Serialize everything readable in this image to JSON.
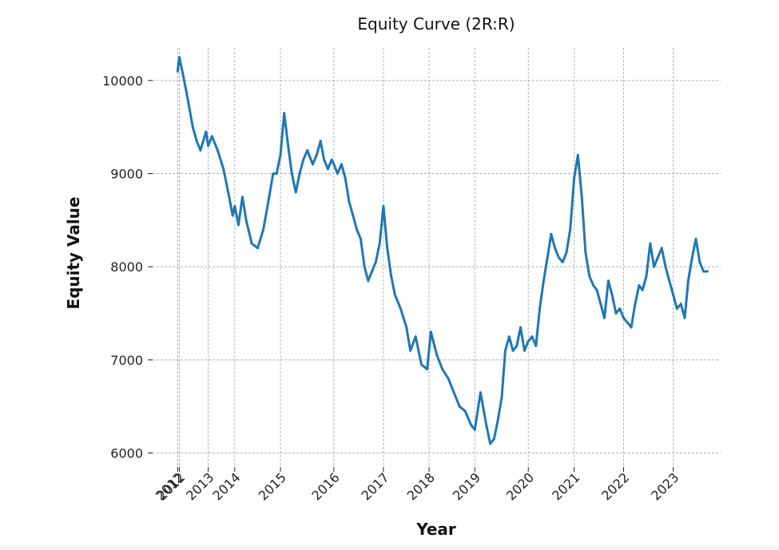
{
  "chart_data": {
    "type": "line",
    "title": "Equity Curve (2R:R)",
    "xlabel": "Year",
    "ylabel": "Equity Value",
    "grid": true,
    "ylim": [
      5850,
      10350
    ],
    "y_ticks": [
      6000,
      7000,
      8000,
      9000,
      10000
    ],
    "x_ticks": [
      {
        "label": "2012",
        "value": "2012-01-01"
      },
      {
        "label": "2012",
        "value": "2012-01-15"
      },
      {
        "label": "2013",
        "value": "2012-09-01"
      },
      {
        "label": "2014",
        "value": "2013-04-01"
      },
      {
        "label": "2015",
        "value": "2014-04-01"
      },
      {
        "label": "2016",
        "value": "2015-06-01"
      },
      {
        "label": "2017",
        "value": "2016-07-01"
      },
      {
        "label": "2018",
        "value": "2017-07-01"
      },
      {
        "label": "2019",
        "value": "2018-07-01"
      },
      {
        "label": "2020",
        "value": "2019-09-01"
      },
      {
        "label": "2021",
        "value": "2020-09-01"
      },
      {
        "label": "2022",
        "value": "2021-10-01"
      },
      {
        "label": "2023",
        "value": "2022-11-01"
      }
    ],
    "series": [
      {
        "color": "#1f77b4",
        "x": [
          "2012-01-01",
          "2012-01-15",
          "2012-02-15",
          "2012-03-15",
          "2012-05-01",
          "2012-06-01",
          "2012-07-01",
          "2012-08-15",
          "2012-09-01",
          "2012-10-01",
          "2012-11-15",
          "2013-01-01",
          "2013-02-15",
          "2013-03-15",
          "2013-04-01",
          "2013-05-01",
          "2013-06-01",
          "2013-07-01",
          "2013-08-15",
          "2013-10-01",
          "2013-11-15",
          "2014-01-01",
          "2014-02-01",
          "2014-03-01",
          "2014-04-01",
          "2014-05-01",
          "2014-06-01",
          "2014-07-01",
          "2014-08-01",
          "2014-09-01",
          "2014-10-01",
          "2014-11-01",
          "2014-12-15",
          "2015-01-15",
          "2015-02-15",
          "2015-03-15",
          "2015-04-15",
          "2015-05-15",
          "2015-06-01",
          "2015-07-01",
          "2015-08-01",
          "2015-09-01",
          "2015-10-01",
          "2015-11-01",
          "2015-12-01",
          "2016-01-01",
          "2016-02-01",
          "2016-03-01",
          "2016-04-01",
          "2016-05-01",
          "2016-06-01",
          "2016-07-01",
          "2016-08-01",
          "2016-09-01",
          "2016-10-01",
          "2016-11-15",
          "2017-01-01",
          "2017-02-01",
          "2017-03-15",
          "2017-05-01",
          "2017-06-15",
          "2017-07-15",
          "2017-09-01",
          "2017-10-15",
          "2017-12-01",
          "2018-01-15",
          "2018-03-01",
          "2018-04-15",
          "2018-06-01",
          "2018-07-01",
          "2018-08-15",
          "2018-10-01",
          "2018-11-01",
          "2018-12-01",
          "2019-01-01",
          "2019-02-01",
          "2019-03-01",
          "2019-04-01",
          "2019-05-01",
          "2019-06-01",
          "2019-07-01",
          "2019-08-01",
          "2019-09-01",
          "2019-10-01",
          "2019-11-01",
          "2019-12-01",
          "2020-01-01",
          "2020-02-01",
          "2020-03-01",
          "2020-04-01",
          "2020-05-01",
          "2020-06-01",
          "2020-07-01",
          "2020-08-01",
          "2020-09-01",
          "2020-10-01",
          "2020-11-01",
          "2020-12-01",
          "2021-01-01",
          "2021-02-01",
          "2021-03-01",
          "2021-04-01",
          "2021-05-01",
          "2021-06-01",
          "2021-07-01",
          "2021-08-01",
          "2021-09-01",
          "2021-10-01",
          "2021-11-01",
          "2021-12-01",
          "2022-01-01",
          "2022-02-01",
          "2022-03-01",
          "2022-04-01",
          "2022-05-01",
          "2022-06-01",
          "2022-07-01",
          "2022-08-01",
          "2022-09-01",
          "2022-10-01",
          "2022-11-01",
          "2022-12-01",
          "2023-01-01",
          "2023-02-01",
          "2023-03-01",
          "2023-04-01",
          "2023-05-01",
          "2023-06-01",
          "2023-07-01",
          "2023-08-01"
        ],
        "y": [
          10100,
          10250,
          10050,
          9850,
          9500,
          9350,
          9250,
          9450,
          9300,
          9400,
          9250,
          9050,
          8750,
          8550,
          8650,
          8450,
          8750,
          8500,
          8250,
          8200,
          8400,
          8750,
          9000,
          9000,
          9200,
          9650,
          9300,
          9000,
          8800,
          9000,
          9150,
          9250,
          9100,
          9200,
          9350,
          9150,
          9050,
          9150,
          9100,
          9000,
          9100,
          8950,
          8700,
          8550,
          8400,
          8300,
          8000,
          7850,
          7950,
          8050,
          8250,
          8650,
          8200,
          7900,
          7700,
          7550,
          7350,
          7100,
          7250,
          6950,
          6900,
          7300,
          7050,
          6900,
          6800,
          6650,
          6500,
          6450,
          6300,
          6250,
          6650,
          6300,
          6100,
          6150,
          6350,
          6600,
          7100,
          7250,
          7100,
          7150,
          7350,
          7100,
          7200,
          7250,
          7150,
          7550,
          7850,
          8100,
          8350,
          8200,
          8100,
          8050,
          8150,
          8400,
          8950,
          9200,
          8750,
          8150,
          7900,
          7800,
          7750,
          7600,
          7450,
          7850,
          7700,
          7500,
          7550,
          7450,
          7400,
          7350,
          7600,
          7800,
          7750,
          7900,
          8250,
          8000,
          8100,
          8200,
          8000,
          7850,
          7700,
          7550,
          7600,
          7450,
          7850,
          8100,
          8300,
          8050,
          7950,
          7950
        ]
      }
    ]
  }
}
